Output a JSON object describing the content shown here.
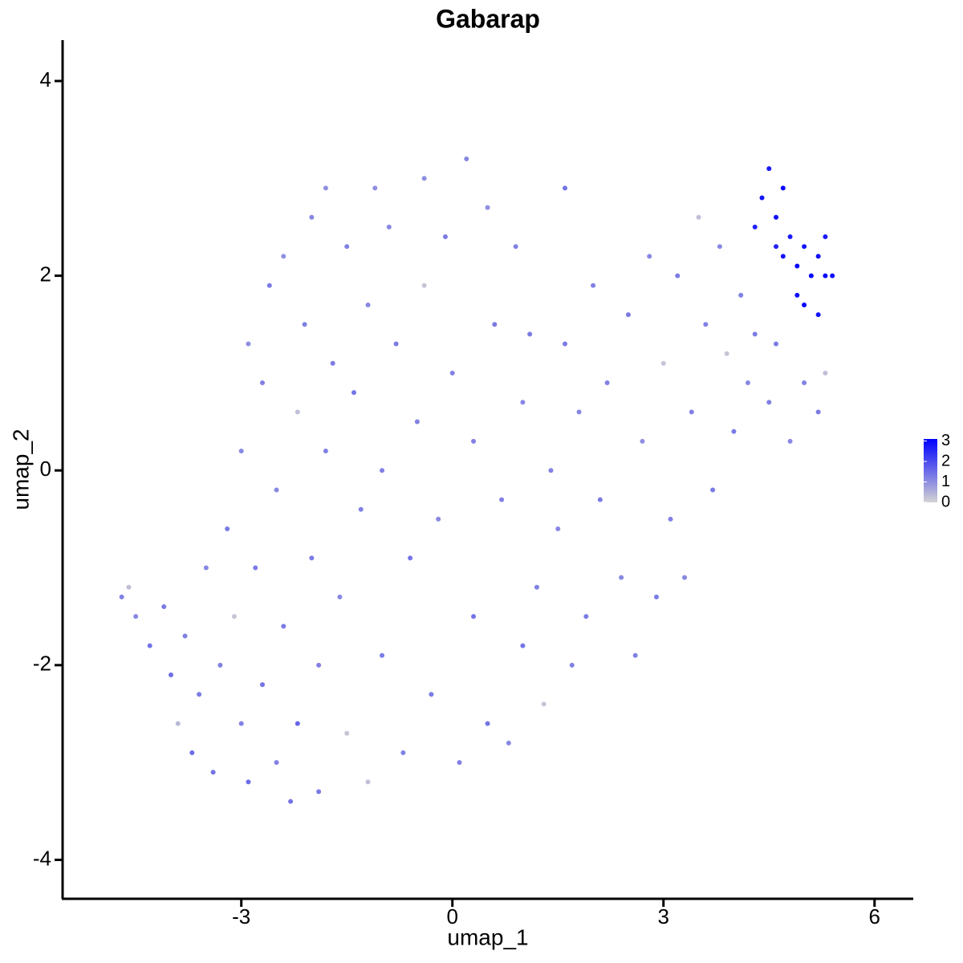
{
  "chart_data": {
    "type": "scatter",
    "title": "Gabarap",
    "x_label": "umap_1",
    "y_label": "umap_2",
    "xlim": [
      -5.54,
      6.55
    ],
    "ylim": [
      -4.4,
      4.42
    ],
    "xticks": [
      -3,
      0,
      3,
      6
    ],
    "yticks": [
      -4,
      -2,
      0,
      2,
      4
    ],
    "x": [
      -4.7,
      -4.6,
      -4.5,
      -4.3,
      -4.1,
      -4.0,
      -3.9,
      -3.8,
      -3.7,
      -3.6,
      -3.5,
      -3.4,
      -3.3,
      -3.2,
      -3.1,
      -3.0,
      -3.0,
      -2.9,
      -2.9,
      -2.8,
      -2.7,
      -2.7,
      -2.6,
      -2.5,
      -2.5,
      -2.4,
      -2.4,
      -2.3,
      -2.2,
      -2.2,
      -2.1,
      -2.0,
      -2.0,
      -1.9,
      -1.9,
      -1.8,
      -1.8,
      -1.7,
      -1.6,
      -1.5,
      -1.5,
      -1.4,
      -1.3,
      -1.2,
      -1.2,
      -1.1,
      -1.0,
      -1.0,
      -0.9,
      -0.8,
      -0.7,
      -0.6,
      -0.5,
      -0.4,
      -0.4,
      -0.3,
      -0.2,
      -0.1,
      0.0,
      0.1,
      0.2,
      0.3,
      0.3,
      0.5,
      0.5,
      0.6,
      0.7,
      0.8,
      0.9,
      1.0,
      1.0,
      1.1,
      1.2,
      1.3,
      1.4,
      1.5,
      1.6,
      1.6,
      1.7,
      1.8,
      1.9,
      2.0,
      2.1,
      2.2,
      2.4,
      2.5,
      2.6,
      2.7,
      2.8,
      2.9,
      3.0,
      3.1,
      3.2,
      3.3,
      3.4,
      3.5,
      3.6,
      3.7,
      3.8,
      3.9,
      4.0,
      4.1,
      4.2,
      4.3,
      4.5,
      4.6,
      4.8,
      5.0,
      5.2,
      5.3,
      4.3,
      4.4,
      4.5,
      4.6,
      4.7,
      4.7,
      4.8,
      4.9,
      4.9,
      5.0,
      5.0,
      5.1,
      5.2,
      5.2,
      5.3,
      5.3,
      5.4,
      4.6
    ],
    "values": [
      -1.3,
      -1.2,
      -1.5,
      -1.8,
      -1.4,
      -2.1,
      -2.6,
      -1.7,
      -2.9,
      -2.3,
      -1.0,
      -3.1,
      -2.0,
      -0.6,
      -1.5,
      -2.6,
      0.2,
      -3.2,
      1.3,
      -1.0,
      0.9,
      -2.2,
      1.9,
      -0.2,
      -3.0,
      2.2,
      -1.6,
      -3.4,
      0.6,
      -2.6,
      1.5,
      2.6,
      -0.9,
      -3.3,
      -2.0,
      0.2,
      2.9,
      1.1,
      -1.3,
      2.3,
      -2.7,
      0.8,
      -0.4,
      1.7,
      -3.2,
      2.9,
      -1.9,
      0.0,
      2.5,
      1.3,
      -2.9,
      -0.9,
      0.5,
      3.0,
      1.9,
      -2.3,
      -0.5,
      2.4,
      1.0,
      -3.0,
      3.2,
      -1.5,
      0.3,
      2.7,
      -2.6,
      1.5,
      -0.3,
      -2.8,
      2.3,
      -1.8,
      0.7,
      1.4,
      -1.2,
      -2.4,
      0.0,
      -0.6,
      1.3,
      2.9,
      -2.0,
      0.6,
      -1.5,
      1.9,
      -0.3,
      0.9,
      -1.1,
      1.6,
      -1.9,
      0.3,
      2.2,
      -1.3,
      1.1,
      -0.5,
      2.0,
      -1.1,
      0.6,
      2.6,
      1.5,
      -0.2,
      2.3,
      1.2,
      0.4,
      1.8,
      0.9,
      1.4,
      0.7,
      1.3,
      0.3,
      0.9,
      0.6,
      1.0,
      2.5,
      2.8,
      3.1,
      2.6,
      2.9,
      2.2,
      2.4,
      2.1,
      1.8,
      1.7,
      2.3,
      2.0,
      1.6,
      2.2,
      2.4,
      2.0,
      2.0,
      2.3
    ],
    "color_values": [
      1.2,
      0.3,
      1.1,
      1.4,
      1.3,
      1.5,
      0.4,
      1.2,
      1.5,
      1.3,
      1.1,
      1.4,
      1.2,
      1.3,
      0.2,
      1.2,
      1.1,
      1.5,
      1.0,
      1.3,
      1.2,
      1.4,
      1.3,
      1.1,
      1.2,
      1.0,
      1.3,
      1.4,
      0.3,
      1.6,
      1.2,
      1.1,
      1.3,
      1.3,
      1.2,
      1.2,
      1.0,
      1.3,
      1.1,
      1.2,
      0.2,
      1.4,
      1.2,
      1.1,
      0.3,
      1.0,
      1.3,
      1.2,
      1.1,
      1.3,
      1.2,
      1.4,
      1.2,
      1.0,
      0.2,
      1.3,
      1.1,
      1.3,
      1.2,
      1.2,
      1.1,
      1.4,
      1.2,
      1.0,
      1.4,
      1.3,
      1.2,
      1.1,
      1.2,
      1.4,
      1.1,
      1.3,
      1.2,
      0.2,
      1.2,
      1.1,
      1.3,
      1.4,
      1.2,
      1.1,
      1.3,
      1.2,
      1.3,
      1.2,
      1.1,
      1.3,
      1.2,
      1.0,
      1.1,
      1.3,
      0.2,
      1.2,
      1.3,
      1.1,
      1.2,
      0.3,
      1.2,
      1.3,
      1.1,
      0.2,
      1.3,
      1.2,
      1.1,
      1.3,
      1.2,
      1.3,
      1.1,
      1.2,
      1.3,
      0.3,
      2.6,
      2.8,
      2.7,
      2.9,
      3.0,
      2.8,
      2.7,
      3.0,
      2.9,
      3.1,
      2.8,
      3.0,
      2.8,
      2.9,
      2.7,
      3.0,
      2.9,
      2.6
    ],
    "colorbar": {
      "lim": [
        0,
        3.1
      ],
      "ticks": [
        0,
        1,
        2,
        3
      ],
      "colors": [
        "#d3d3d3",
        "#0000ff"
      ]
    }
  }
}
